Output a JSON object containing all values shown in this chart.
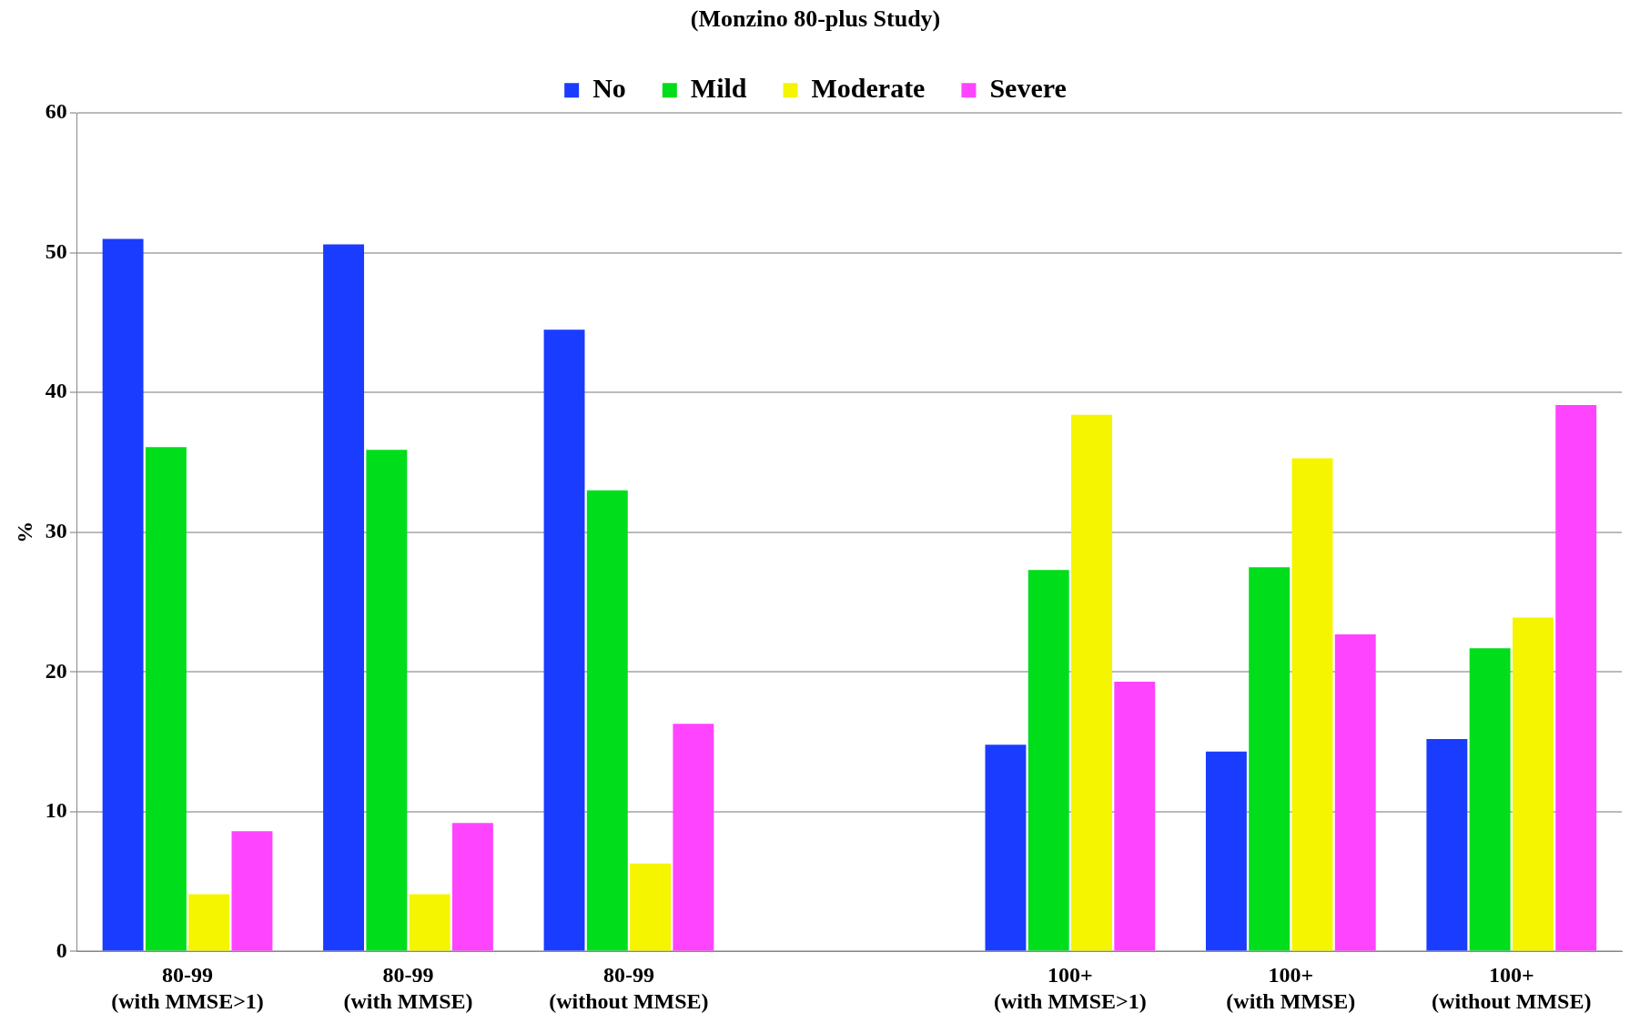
{
  "chart_data": {
    "type": "bar",
    "title": "(Monzino 80-plus Study)",
    "ylabel": "%",
    "categories": [
      "80-99\n(with MMSE>1)",
      "80-99\n(with MMSE)",
      "80-99\n(without MMSE)",
      null,
      "100+\n(with MMSE>1)",
      "100+\n(with MMSE)",
      "100+\n(without MMSE)"
    ],
    "series": [
      {
        "name": "No",
        "color": "#1a3cff",
        "values": [
          51,
          50.6,
          44.5,
          null,
          14.8,
          14.3,
          15.2
        ]
      },
      {
        "name": "Mild",
        "color": "#00dd1a",
        "values": [
          36.1,
          35.9,
          33.0,
          null,
          27.3,
          27.5,
          21.7
        ]
      },
      {
        "name": "Moderate",
        "color": "#f5f500",
        "values": [
          4.1,
          4.1,
          6.3,
          null,
          38.4,
          35.3,
          23.9
        ]
      },
      {
        "name": "Severe",
        "color": "#ff44ff",
        "values": [
          8.6,
          9.2,
          16.3,
          null,
          19.3,
          22.7,
          39.1
        ]
      }
    ],
    "ylim": [
      0,
      60
    ],
    "yticks": [
      0,
      10,
      20,
      30,
      40,
      50,
      60
    ],
    "grid": "y",
    "legend": "top"
  }
}
